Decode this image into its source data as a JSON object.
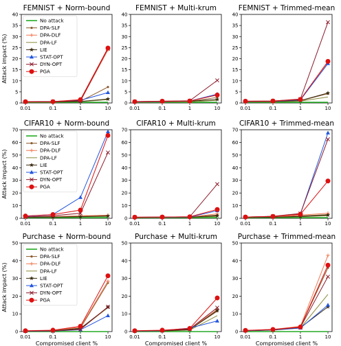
{
  "chart_data": [
    {
      "type": "line",
      "title": "FEMNIST + Norm-bound",
      "x": [
        "0.01",
        "0.1",
        "1",
        "10"
      ],
      "ylim": [
        0,
        40
      ],
      "yticks": [
        0,
        5,
        10,
        15,
        20,
        25,
        30,
        35,
        40
      ],
      "ylabel": "Attack impact (%)",
      "xlabel": "",
      "legend": true,
      "series": [
        {
          "name": "No attack",
          "values": [
            0.3,
            0.3,
            0.3,
            0.3
          ]
        },
        {
          "name": "DPA-SLF",
          "values": [
            0.4,
            0.4,
            0.8,
            7.2
          ]
        },
        {
          "name": "DPA-DLF",
          "values": [
            0.4,
            0.4,
            0.8,
            24.0
          ]
        },
        {
          "name": "DPA-LF",
          "values": [
            0.3,
            0.3,
            0.6,
            1.5
          ]
        },
        {
          "name": "LIE",
          "values": [
            0.5,
            0.5,
            0.7,
            1.8
          ]
        },
        {
          "name": "STAT-OPT",
          "values": [
            0.6,
            0.7,
            1.2,
            4.7
          ]
        },
        {
          "name": "DYN-OPT",
          "values": [
            0.5,
            0.6,
            1.0,
            24.5
          ]
        },
        {
          "name": "PGA",
          "values": [
            0.6,
            0.6,
            1.5,
            24.8
          ]
        }
      ]
    },
    {
      "type": "line",
      "title": "FEMNIST + Multi-krum",
      "x": [
        "0.01",
        "0.1",
        "1",
        "10"
      ],
      "ylim": [
        0,
        40
      ],
      "yticks": [
        0,
        5,
        10,
        15,
        20,
        25,
        30,
        35,
        40
      ],
      "ylabel": "",
      "xlabel": "",
      "legend": false,
      "series": [
        {
          "name": "No attack",
          "values": [
            0.3,
            0.3,
            0.3,
            0.3
          ]
        },
        {
          "name": "DPA-SLF",
          "values": [
            0.4,
            0.5,
            0.7,
            2.5
          ]
        },
        {
          "name": "DPA-DLF",
          "values": [
            0.4,
            0.5,
            0.8,
            3.8
          ]
        },
        {
          "name": "DPA-LF",
          "values": [
            0.3,
            0.4,
            0.5,
            1.2
          ]
        },
        {
          "name": "LIE",
          "values": [
            0.5,
            0.6,
            0.8,
            1.6
          ]
        },
        {
          "name": "STAT-OPT",
          "values": [
            0.5,
            0.7,
            0.9,
            4.0
          ]
        },
        {
          "name": "DYN-OPT",
          "values": [
            0.6,
            0.8,
            1.0,
            10.2
          ]
        },
        {
          "name": "PGA",
          "values": [
            0.6,
            0.8,
            0.9,
            3.6
          ]
        }
      ]
    },
    {
      "type": "line",
      "title": "FEMNIST + Trimmed-mean",
      "x": [
        "0.01",
        "0.1",
        "1",
        "10"
      ],
      "ylim": [
        0,
        40
      ],
      "yticks": [
        0,
        5,
        10,
        15,
        20,
        25,
        30,
        35,
        40
      ],
      "ylabel": "",
      "xlabel": "",
      "legend": false,
      "series": [
        {
          "name": "No attack",
          "values": [
            0.3,
            0.3,
            0.3,
            0.3
          ]
        },
        {
          "name": "DPA-SLF",
          "values": [
            0.5,
            0.6,
            1.0,
            4.2
          ]
        },
        {
          "name": "DPA-DLF",
          "values": [
            0.6,
            0.7,
            1.5,
            18.2
          ]
        },
        {
          "name": "DPA-LF",
          "values": [
            0.4,
            0.5,
            0.8,
            2.7
          ]
        },
        {
          "name": "LIE",
          "values": [
            0.6,
            0.7,
            1.1,
            4.5
          ]
        },
        {
          "name": "STAT-OPT",
          "values": [
            0.7,
            0.8,
            1.4,
            17.8
          ]
        },
        {
          "name": "DYN-OPT",
          "values": [
            0.8,
            0.9,
            1.8,
            36.5
          ]
        },
        {
          "name": "PGA",
          "values": [
            0.8,
            0.9,
            1.6,
            18.8
          ]
        }
      ]
    },
    {
      "type": "line",
      "title": "CIFAR10 + Norm-bound",
      "x": [
        "0.01",
        "0.1",
        "1",
        "10"
      ],
      "ylim": [
        0,
        70
      ],
      "yticks": [
        0,
        10,
        20,
        30,
        40,
        50,
        60,
        70
      ],
      "ylabel": "Attack impact (%)",
      "xlabel": "",
      "legend": true,
      "series": [
        {
          "name": "No attack",
          "values": [
            0.5,
            0.5,
            0.5,
            0.5
          ]
        },
        {
          "name": "DPA-SLF",
          "values": [
            1.0,
            1.2,
            1.5,
            2.0
          ]
        },
        {
          "name": "DPA-DLF",
          "values": [
            1.0,
            1.3,
            2.0,
            2.5
          ]
        },
        {
          "name": "DPA-LF",
          "values": [
            0.8,
            1.0,
            1.2,
            1.5
          ]
        },
        {
          "name": "LIE",
          "values": [
            0.9,
            1.0,
            1.3,
            1.8
          ]
        },
        {
          "name": "STAT-OPT",
          "values": [
            1.5,
            3.0,
            16.5,
            68.5
          ]
        },
        {
          "name": "DYN-OPT",
          "values": [
            1.0,
            2.0,
            4.0,
            52.0
          ]
        },
        {
          "name": "PGA",
          "values": [
            1.8,
            3.0,
            6.5,
            65.5
          ]
        }
      ]
    },
    {
      "type": "line",
      "title": "CIFAR10 + Multi-krum",
      "x": [
        "0.01",
        "0.1",
        "1",
        "10"
      ],
      "ylim": [
        0,
        70
      ],
      "yticks": [
        0,
        10,
        20,
        30,
        40,
        50,
        60,
        70
      ],
      "ylabel": "",
      "xlabel": "",
      "legend": false,
      "series": [
        {
          "name": "No attack",
          "values": [
            0.5,
            0.5,
            0.5,
            0.5
          ]
        },
        {
          "name": "DPA-SLF",
          "values": [
            0.8,
            0.9,
            1.0,
            2.5
          ]
        },
        {
          "name": "DPA-DLF",
          "values": [
            0.8,
            0.9,
            1.0,
            3.5
          ]
        },
        {
          "name": "DPA-LF",
          "values": [
            0.6,
            0.7,
            0.8,
            1.5
          ]
        },
        {
          "name": "LIE",
          "values": [
            0.7,
            0.8,
            0.9,
            2.0
          ]
        },
        {
          "name": "STAT-OPT",
          "values": [
            0.8,
            0.9,
            1.0,
            6.0
          ]
        },
        {
          "name": "DYN-OPT",
          "values": [
            0.9,
            1.0,
            1.2,
            27.0
          ]
        },
        {
          "name": "PGA",
          "values": [
            0.9,
            1.0,
            1.2,
            7.0
          ]
        }
      ]
    },
    {
      "type": "line",
      "title": "CIFAR10 + Trimmed-mean",
      "x": [
        "0.01",
        "0.1",
        "1",
        "10"
      ],
      "ylim": [
        0,
        70
      ],
      "yticks": [
        0,
        10,
        20,
        30,
        40,
        50,
        60,
        70
      ],
      "ylabel": "",
      "xlabel": "",
      "legend": false,
      "series": [
        {
          "name": "No attack",
          "values": [
            0.5,
            0.5,
            0.5,
            0.5
          ]
        },
        {
          "name": "DPA-SLF",
          "values": [
            0.8,
            1.0,
            1.8,
            3.0
          ]
        },
        {
          "name": "DPA-DLF",
          "values": [
            0.9,
            1.1,
            2.5,
            4.0
          ]
        },
        {
          "name": "DPA-LF",
          "values": [
            0.7,
            0.8,
            1.2,
            2.0
          ]
        },
        {
          "name": "LIE",
          "values": [
            0.8,
            0.9,
            1.5,
            2.5
          ]
        },
        {
          "name": "STAT-OPT",
          "values": [
            1.0,
            1.5,
            3.5,
            67.5
          ]
        },
        {
          "name": "DYN-OPT",
          "values": [
            1.0,
            1.6,
            3.8,
            62.5
          ]
        },
        {
          "name": "PGA",
          "values": [
            1.0,
            1.5,
            3.2,
            29.5
          ]
        }
      ]
    },
    {
      "type": "line",
      "title": "Purchase + Norm-bound",
      "x": [
        "0.01",
        "0.1",
        "1",
        "10"
      ],
      "ylim": [
        0,
        50
      ],
      "yticks": [
        0,
        10,
        20,
        30,
        40,
        50
      ],
      "ylabel": "Attack impact (%)",
      "xlabel": "Compromised client %",
      "legend": true,
      "series": [
        {
          "name": "No attack",
          "values": [
            0.0,
            0.0,
            0.0,
            0.0
          ]
        },
        {
          "name": "DPA-SLF",
          "values": [
            0.3,
            0.5,
            2.0,
            27.5
          ]
        },
        {
          "name": "DPA-DLF",
          "values": [
            0.4,
            0.6,
            2.5,
            28.5
          ]
        },
        {
          "name": "DPA-LF",
          "values": [
            0.2,
            0.3,
            1.5,
            13.5
          ]
        },
        {
          "name": "LIE",
          "values": [
            0.3,
            0.4,
            1.8,
            13.8
          ]
        },
        {
          "name": "STAT-OPT",
          "values": [
            0.2,
            0.3,
            1.0,
            9.0
          ]
        },
        {
          "name": "DYN-OPT",
          "values": [
            0.3,
            0.4,
            1.2,
            14.0
          ]
        },
        {
          "name": "PGA",
          "values": [
            0.5,
            0.8,
            3.0,
            31.5
          ]
        }
      ]
    },
    {
      "type": "line",
      "title": "Purchase + Multi-krum",
      "x": [
        "0.01",
        "0.1",
        "1",
        "10"
      ],
      "ylim": [
        0,
        50
      ],
      "yticks": [
        0,
        10,
        20,
        30,
        40,
        50
      ],
      "ylabel": "",
      "xlabel": "Compromised client %",
      "legend": false,
      "series": [
        {
          "name": "No attack",
          "values": [
            0.0,
            0.0,
            0.0,
            0.0
          ]
        },
        {
          "name": "DPA-SLF",
          "values": [
            0.3,
            0.5,
            1.2,
            11.5
          ]
        },
        {
          "name": "DPA-DLF",
          "values": [
            0.4,
            0.6,
            1.5,
            12.5
          ]
        },
        {
          "name": "DPA-LF",
          "values": [
            0.2,
            0.3,
            0.8,
            9.0
          ]
        },
        {
          "name": "LIE",
          "values": [
            0.3,
            0.4,
            1.0,
            12.0
          ]
        },
        {
          "name": "STAT-OPT",
          "values": [
            0.3,
            0.5,
            2.0,
            6.0
          ]
        },
        {
          "name": "DYN-OPT",
          "values": [
            0.4,
            0.6,
            1.5,
            13.5
          ]
        },
        {
          "name": "PGA",
          "values": [
            0.5,
            0.8,
            1.8,
            19.0
          ]
        }
      ]
    },
    {
      "type": "line",
      "title": "Purchase + Trimmed-mean",
      "x": [
        "0.01",
        "0.1",
        "1",
        "10"
      ],
      "ylim": [
        0,
        50
      ],
      "yticks": [
        0,
        10,
        20,
        30,
        40,
        50
      ],
      "ylabel": "",
      "xlabel": "Compromised client %",
      "legend": false,
      "series": [
        {
          "name": "No attack",
          "values": [
            0.0,
            0.0,
            0.0,
            0.0
          ]
        },
        {
          "name": "DPA-SLF",
          "values": [
            0.5,
            1.0,
            2.5,
            36.0
          ]
        },
        {
          "name": "DPA-DLF",
          "values": [
            0.6,
            1.2,
            3.0,
            43.0
          ]
        },
        {
          "name": "DPA-LF",
          "values": [
            0.4,
            0.8,
            2.0,
            21.0
          ]
        },
        {
          "name": "LIE",
          "values": [
            0.5,
            0.9,
            2.2,
            14.0
          ]
        },
        {
          "name": "STAT-OPT",
          "values": [
            0.5,
            0.9,
            2.0,
            15.0
          ]
        },
        {
          "name": "DYN-OPT",
          "values": [
            0.6,
            1.0,
            2.4,
            31.0
          ]
        },
        {
          "name": "PGA",
          "values": [
            0.7,
            1.2,
            2.6,
            37.5
          ]
        }
      ]
    }
  ],
  "series_styles": [
    {
      "name": "No attack",
      "color": "#22aa22",
      "marker": "none"
    },
    {
      "name": "DPA-SLF",
      "color": "#8b5a2b",
      "marker": "dot"
    },
    {
      "name": "DPA-DLF",
      "color": "#f07850",
      "marker": "plus"
    },
    {
      "name": "DPA-LF",
      "color": "#8a8a3a",
      "marker": "none"
    },
    {
      "name": "LIE",
      "color": "#3a2a10",
      "marker": "star"
    },
    {
      "name": "STAT-OPT",
      "color": "#2255dd",
      "marker": "triangle"
    },
    {
      "name": "DYN-OPT",
      "color": "#8b1a2a",
      "marker": "x"
    },
    {
      "name": "PGA",
      "color": "#dd1111",
      "marker": "circle"
    }
  ]
}
